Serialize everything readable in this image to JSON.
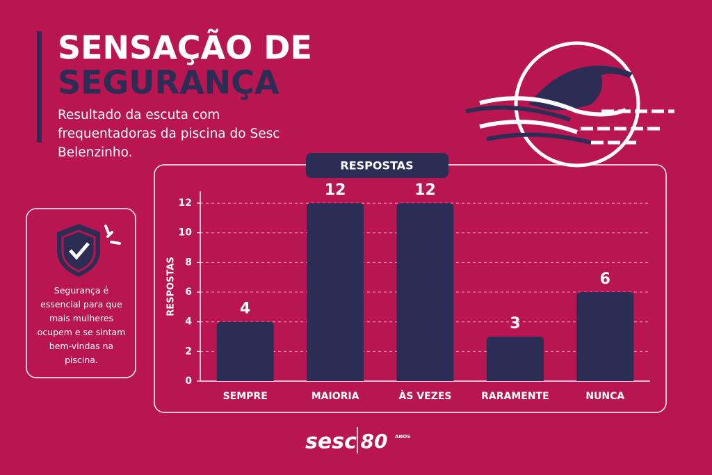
{
  "header": {
    "title_1": "SENSAÇÃO DE",
    "title_2": "SEGURANÇA",
    "subtitle": "Resultado da escuta com frequentadoras da piscina do Sesc Belenzinho."
  },
  "side_card": {
    "text": "Segurança é essencial para que mais mulheres ocupem e se sintam bem-vindas na piscina."
  },
  "chart_data": {
    "type": "bar",
    "title": "RESPOSTAS",
    "y_label": "RESPOSTAS",
    "categories": [
      "SEMPRE",
      "MAIORIA",
      "ÀS VEZES",
      "RARAMENTE",
      "NUNCA"
    ],
    "values": [
      4,
      12,
      12,
      3,
      6
    ],
    "color": "#2b2d55",
    "ylim": [
      0,
      12.8
    ],
    "yticks": [
      0,
      2,
      4,
      6,
      8,
      10,
      12
    ],
    "grid": true
  },
  "footer": {
    "brand": "sesc",
    "anniversary": "80",
    "anos": "ANOS"
  }
}
